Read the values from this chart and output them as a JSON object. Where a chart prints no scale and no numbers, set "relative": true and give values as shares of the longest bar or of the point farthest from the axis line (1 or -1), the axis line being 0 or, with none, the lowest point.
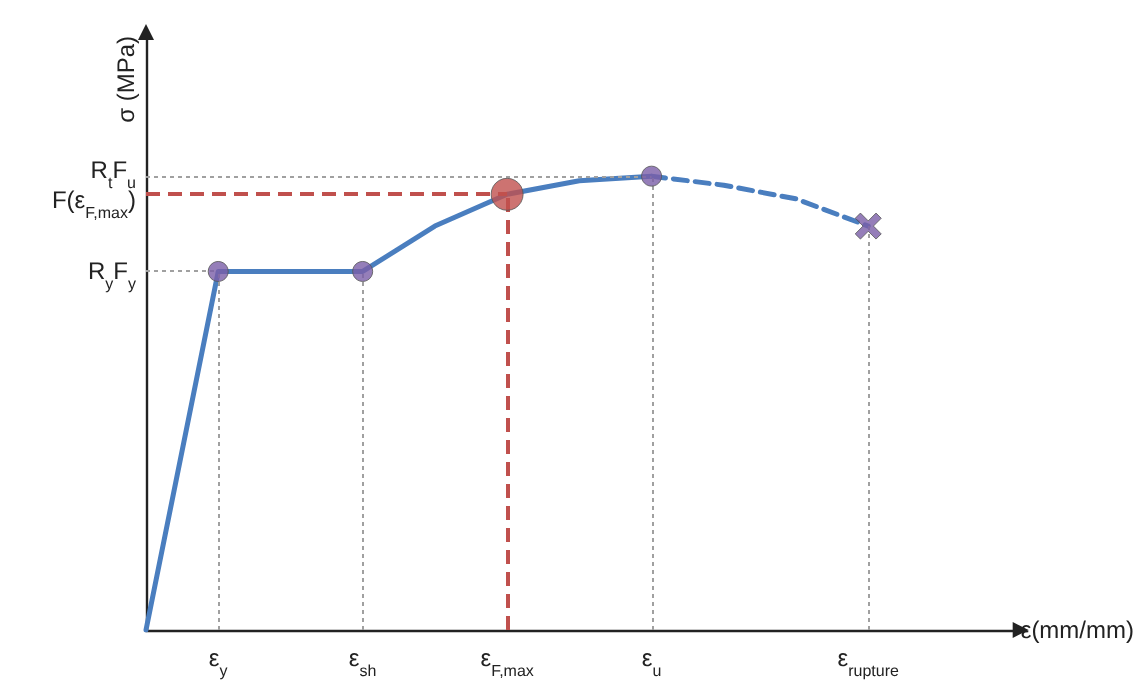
{
  "chart_data": {
    "type": "line",
    "relative": true,
    "grid": "x",
    "xlabel": "ε(mm/mm)",
    "ylabel": "σ (MPa)",
    "categories": [
      null,
      "ε$_{y}$",
      null,
      "ε$_{sh}$",
      null,
      "ε$_{F,max}$",
      null,
      "ε$_{u}$",
      null,
      null,
      "ε$_{rupture}$",
      null,
      null
    ],
    "series": [
      {
        "color": "#4a7ebf",
        "line_style": "solid",
        "marker": "none",
        "values": [
          0,
          0.79,
          0.79,
          0.79,
          0.89,
          0.96,
          0.99,
          1.0,
          null,
          null,
          null,
          null,
          null
        ]
      },
      {
        "color": "#4a7ebf",
        "line_style": "dashed",
        "marker": "none",
        "values": [
          null,
          null,
          null,
          null,
          null,
          null,
          null,
          1.0,
          0.98,
          0.95,
          0.89,
          null,
          null
        ]
      },
      {
        "type": "scatter",
        "color": "#7b5ea7",
        "marker": "circle",
        "values": [
          null,
          0.79,
          null,
          0.79,
          null,
          null,
          null,
          1.0,
          null,
          null,
          null,
          null,
          null
        ]
      },
      {
        "type": "scatter",
        "color": "#c0504d",
        "marker": "circle",
        "values": [
          null,
          null,
          null,
          null,
          null,
          0.96,
          null,
          null,
          null,
          null,
          null,
          null,
          null
        ]
      },
      {
        "type": "scatter",
        "color": "#7b5ea7",
        "marker": "cross",
        "values": [
          null,
          null,
          null,
          null,
          null,
          null,
          null,
          null,
          null,
          null,
          0.89,
          null,
          null
        ]
      }
    ],
    "ref_lines": [
      {
        "axis": "y",
        "value": 1.0,
        "label": "R$_{t}$F$_{u}$",
        "color": "#a0a0a0",
        "line_style": "dotted"
      },
      {
        "axis": "y",
        "value": 0.96,
        "label": "F(ε$_{F,max}$)",
        "color": "#c0504d",
        "line_style": "dashed"
      },
      {
        "axis": "y",
        "value": 0.79,
        "label": "R$_{y}$F$_{y}$",
        "color": "#a0a0a0",
        "line_style": "dotted"
      }
    ]
  }
}
